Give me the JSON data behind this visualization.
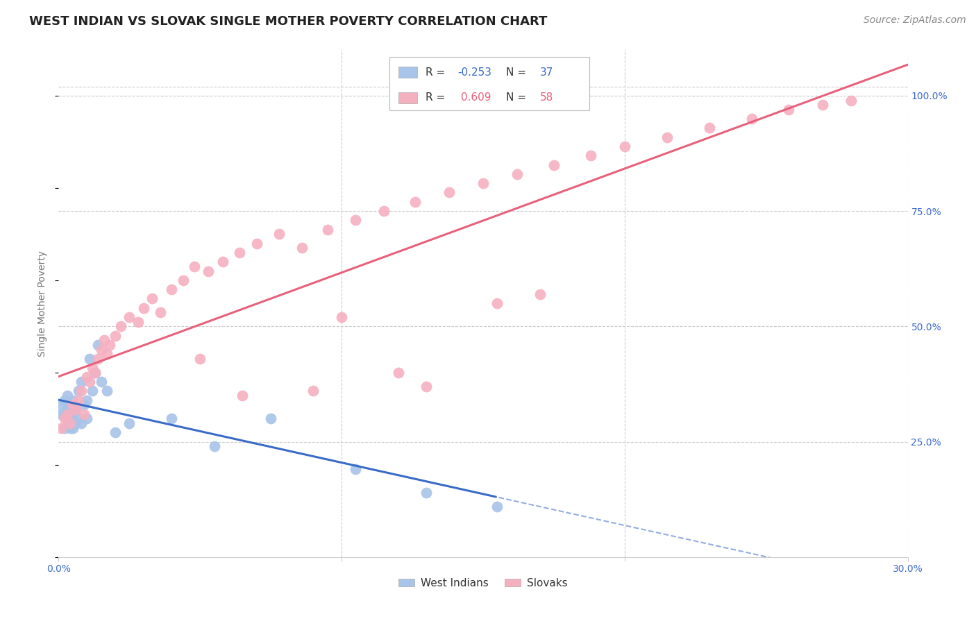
{
  "title": "WEST INDIAN VS SLOVAK SINGLE MOTHER POVERTY CORRELATION CHART",
  "source": "Source: ZipAtlas.com",
  "ylabel": "Single Mother Poverty",
  "ylabel_right_ticks": [
    "100.0%",
    "75.0%",
    "50.0%",
    "25.0%"
  ],
  "ylabel_right_tick_vals": [
    1.0,
    0.75,
    0.5,
    0.25
  ],
  "x_range": [
    0.0,
    0.3
  ],
  "y_range": [
    0.0,
    1.1
  ],
  "west_indian_color": "#a8c4e8",
  "slovak_color": "#f5b0c0",
  "west_indian_line_color": "#3a6bc8",
  "slovak_line_color": "#e8607a",
  "legend_blue_color": "#3a6bc8",
  "legend_pink_color": "#e8607a",
  "R_west_indian": -0.253,
  "N_west_indian": 37,
  "R_slovak": 0.609,
  "N_slovak": 58,
  "background_color": "#ffffff",
  "grid_color": "#cccccc",
  "west_indian_x": [
    0.001,
    0.001,
    0.002,
    0.002,
    0.002,
    0.003,
    0.003,
    0.003,
    0.004,
    0.004,
    0.004,
    0.005,
    0.005,
    0.005,
    0.006,
    0.006,
    0.007,
    0.007,
    0.008,
    0.008,
    0.009,
    0.01,
    0.01,
    0.011,
    0.012,
    0.013,
    0.014,
    0.015,
    0.017,
    0.02,
    0.025,
    0.04,
    0.055,
    0.075,
    0.105,
    0.13,
    0.155
  ],
  "west_indian_y": [
    0.33,
    0.31,
    0.34,
    0.31,
    0.28,
    0.35,
    0.32,
    0.3,
    0.33,
    0.3,
    0.28,
    0.34,
    0.31,
    0.28,
    0.32,
    0.29,
    0.36,
    0.3,
    0.38,
    0.29,
    0.33,
    0.34,
    0.3,
    0.43,
    0.36,
    0.4,
    0.46,
    0.38,
    0.36,
    0.27,
    0.29,
    0.3,
    0.24,
    0.3,
    0.19,
    0.14,
    0.11
  ],
  "slovak_x": [
    0.001,
    0.002,
    0.003,
    0.004,
    0.005,
    0.006,
    0.007,
    0.008,
    0.009,
    0.01,
    0.011,
    0.012,
    0.013,
    0.014,
    0.015,
    0.016,
    0.017,
    0.018,
    0.02,
    0.022,
    0.025,
    0.028,
    0.03,
    0.033,
    0.036,
    0.04,
    0.044,
    0.048,
    0.053,
    0.058,
    0.064,
    0.07,
    0.078,
    0.086,
    0.095,
    0.105,
    0.115,
    0.126,
    0.138,
    0.15,
    0.162,
    0.175,
    0.188,
    0.2,
    0.215,
    0.23,
    0.245,
    0.258,
    0.27,
    0.28,
    0.13,
    0.155,
    0.09,
    0.1,
    0.12,
    0.17,
    0.05,
    0.065
  ],
  "slovak_y": [
    0.28,
    0.3,
    0.31,
    0.29,
    0.33,
    0.32,
    0.34,
    0.36,
    0.31,
    0.39,
    0.38,
    0.41,
    0.4,
    0.43,
    0.45,
    0.47,
    0.44,
    0.46,
    0.48,
    0.5,
    0.52,
    0.51,
    0.54,
    0.56,
    0.53,
    0.58,
    0.6,
    0.63,
    0.62,
    0.64,
    0.66,
    0.68,
    0.7,
    0.67,
    0.71,
    0.73,
    0.75,
    0.77,
    0.79,
    0.81,
    0.83,
    0.85,
    0.87,
    0.89,
    0.91,
    0.93,
    0.95,
    0.97,
    0.98,
    0.99,
    0.37,
    0.55,
    0.36,
    0.52,
    0.4,
    0.57,
    0.43,
    0.35
  ],
  "title_fontsize": 13,
  "label_fontsize": 10,
  "tick_fontsize": 10,
  "source_fontsize": 10
}
